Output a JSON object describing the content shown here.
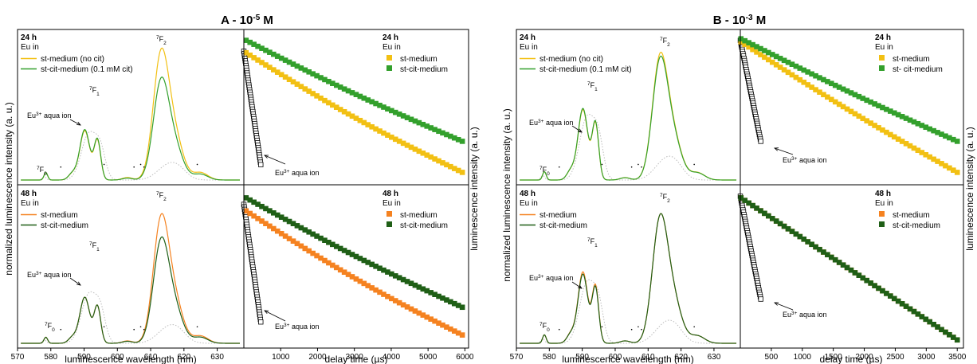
{
  "figure": {
    "panels": [
      {
        "id": "A",
        "heading_prefix": "A - ",
        "heading_base": "10",
        "heading_exp": "-5",
        "heading_unit": " M"
      },
      {
        "id": "B",
        "heading_prefix": "B - ",
        "heading_base": "10",
        "heading_exp": "-3",
        "heading_unit": " M"
      }
    ],
    "left_ylabel": "normalized luminescence intensity (a. u.)",
    "right_ylabel": "luminescence intensity (a. u.)",
    "spectrum_xlabel": "luminescence wavelength (nm)",
    "decay_xlabel": "delay time (µs)",
    "aqua_ion_label": "aqua ion",
    "eu_prefix": "Eu",
    "eu_sup": "3+",
    "f0": "F",
    "f0_sub": "0",
    "f1": "F",
    "f1_sub": "1",
    "f2": "F",
    "f2_sub": "2",
    "seven": "7"
  },
  "colors": {
    "yellow": "#F2C013",
    "green": "#33A02C",
    "orange": "#F58220",
    "darkgreen": "#1F5F16",
    "aqua": "#bdbdbd"
  },
  "chart_data": [
    {
      "type": "line",
      "panel": "A-top",
      "title": "24 h",
      "subtitle": "Eu in",
      "xlabel": "luminescence wavelength (nm)",
      "ylabel": "normalized luminescence intensity (a. u.)",
      "xlim": [
        570,
        638
      ],
      "x_ticks": [
        570,
        580,
        590,
        600,
        610,
        620,
        630
      ],
      "series": [
        {
          "name": "st-medium (no cit)",
          "color": "#F2C013",
          "values_note": "peaks",
          "peaks": {
            "F0": [
              578.5,
              0.06
            ],
            "F1": [
              590.5,
              0.42
            ],
            "F2": [
              613,
              1.0
            ]
          }
        },
        {
          "name": "st-cit-medium (0.1 mM cit)",
          "color": "#33A02C",
          "peaks": {
            "F0": [
              578.5,
              0.06
            ],
            "F1": [
              590.5,
              0.43
            ],
            "F2": [
              613,
              0.78
            ]
          }
        }
      ]
    },
    {
      "type": "scatter",
      "panel": "A-top-decay",
      "title": "24 h",
      "subtitle": "Eu in",
      "xlabel": "delay time (µs)",
      "xlim": [
        0,
        6100
      ],
      "x_ticks": [
        1000,
        2000,
        3000,
        4000,
        5000,
        6000
      ],
      "log_y": true,
      "series": [
        {
          "name": "st-medium",
          "color": "#F2C013",
          "start": 0.85,
          "end": 0.08
        },
        {
          "name": "st-cit-medium",
          "color": "#33A02C",
          "start": 0.93,
          "end": 0.28
        }
      ]
    },
    {
      "type": "line",
      "panel": "A-bottom",
      "title": "48 h",
      "subtitle": "Eu in",
      "series": [
        {
          "name": "st-medium",
          "color": "#F58220",
          "peaks": {
            "F0": [
              578.5,
              0.05
            ],
            "F1": [
              590.5,
              0.4
            ],
            "F2": [
              613,
              1.0
            ]
          }
        },
        {
          "name": "st-cit-medium",
          "color": "#1F5F16",
          "peaks": {
            "F0": [
              578.5,
              0.05
            ],
            "F1": [
              590.5,
              0.4
            ],
            "F2": [
              613,
              0.82
            ]
          }
        }
      ]
    },
    {
      "type": "scatter",
      "panel": "A-bottom-decay",
      "title": "48 h",
      "subtitle": "Eu in",
      "series": [
        {
          "name": "st-medium",
          "color": "#F58220",
          "start": 0.84,
          "end": 0.08
        },
        {
          "name": "st-cit-medium",
          "color": "#1F5F16",
          "start": 0.92,
          "end": 0.25
        }
      ]
    },
    {
      "type": "line",
      "panel": "B-top",
      "title": "24 h",
      "subtitle": "Eu in",
      "xlabel": "luminescence wavelength (nm)",
      "xlim": [
        570,
        638
      ],
      "x_ticks": [
        570,
        580,
        590,
        600,
        610,
        620,
        630
      ],
      "series": [
        {
          "name": "st-medium (no cit)",
          "color": "#F2C013",
          "peaks": {
            "F0": [
              578.5,
              0.07
            ],
            "F1": [
              590.5,
              0.62
            ],
            "F2": [
              613.5,
              1.0
            ]
          }
        },
        {
          "name": "st-cit-medium (0.1 mM cit)",
          "color": "#33A02C",
          "peaks": {
            "F0": [
              578.5,
              0.07
            ],
            "F1": [
              590.5,
              0.63
            ],
            "F2": [
              613.5,
              0.97
            ]
          }
        }
      ]
    },
    {
      "type": "scatter",
      "panel": "B-top-decay",
      "title": "24 h",
      "subtitle": "Eu in",
      "xlabel": "delay time (µs)",
      "xlim": [
        0,
        3600
      ],
      "x_ticks": [
        500,
        1000,
        1500,
        2000,
        2500,
        3000,
        3500
      ],
      "series": [
        {
          "name": "st-medium",
          "color": "#F2C013",
          "start": 0.92,
          "end": 0.08
        },
        {
          "name": "st- cit-medium",
          "color": "#33A02C",
          "start": 0.94,
          "end": 0.28
        }
      ]
    },
    {
      "type": "line",
      "panel": "B-bottom",
      "title": "48 h",
      "subtitle": "Eu in",
      "series": [
        {
          "name": "st-medium",
          "color": "#F58220",
          "peaks": {
            "F0": [
              578.5,
              0.07
            ],
            "F1": [
              590.5,
              0.62
            ],
            "F2": [
              613.5,
              1.0
            ]
          }
        },
        {
          "name": "st-cit-medium",
          "color": "#1F5F16",
          "peaks": {
            "F0": [
              578.5,
              0.07
            ],
            "F1": [
              590.5,
              0.6
            ],
            "F2": [
              613.5,
              1.0
            ]
          }
        }
      ]
    },
    {
      "type": "scatter",
      "panel": "B-bottom-decay",
      "title": "48 h",
      "subtitle": "Eu in",
      "series": [
        {
          "name": "st-medium",
          "color": "#F58220",
          "start": 0.92,
          "end": 0.05
        },
        {
          "name": "st-cit-medium",
          "color": "#1F5F16",
          "start": 0.92,
          "end": 0.05
        }
      ]
    }
  ]
}
